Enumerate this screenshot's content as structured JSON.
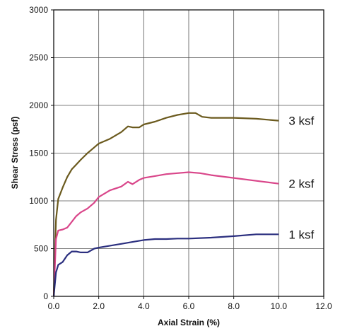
{
  "chart_data": {
    "type": "line",
    "title": "",
    "xlabel": "Axial Strain (%)",
    "ylabel": "Shear Stress (psf)",
    "xlim": [
      0,
      12
    ],
    "ylim": [
      0,
      3000
    ],
    "x_ticks": [
      "0.0",
      "2.0",
      "4.0",
      "6.0",
      "8.0",
      "10.0",
      "12.0"
    ],
    "y_ticks": [
      "0",
      "500",
      "1000",
      "1500",
      "2000",
      "2500",
      "3000"
    ],
    "grid": true,
    "series": [
      {
        "name": "3 ksf",
        "color": "#6b5a1e",
        "x": [
          0,
          0.1,
          0.2,
          0.4,
          0.6,
          0.8,
          1.0,
          1.2,
          1.5,
          1.8,
          2.0,
          2.5,
          3.0,
          3.3,
          3.5,
          3.8,
          4.0,
          4.5,
          5.0,
          5.5,
          6.0,
          6.3,
          6.6,
          7.0,
          8.0,
          9.0,
          10.0
        ],
        "y": [
          0,
          800,
          1020,
          1140,
          1250,
          1330,
          1380,
          1430,
          1500,
          1560,
          1600,
          1650,
          1720,
          1780,
          1770,
          1770,
          1800,
          1830,
          1870,
          1900,
          1920,
          1920,
          1880,
          1870,
          1870,
          1860,
          1840
        ]
      },
      {
        "name": "2 ksf",
        "color": "#d9468a",
        "x": [
          0,
          0.1,
          0.2,
          0.4,
          0.6,
          0.8,
          1.0,
          1.2,
          1.5,
          1.8,
          2.0,
          2.5,
          3.0,
          3.3,
          3.5,
          3.8,
          4.0,
          4.5,
          5.0,
          5.5,
          6.0,
          6.5,
          7.0,
          8.0,
          9.0,
          10.0
        ],
        "y": [
          0,
          600,
          690,
          700,
          720,
          780,
          840,
          880,
          920,
          980,
          1040,
          1110,
          1150,
          1200,
          1175,
          1220,
          1240,
          1260,
          1280,
          1290,
          1300,
          1290,
          1270,
          1240,
          1210,
          1180
        ]
      },
      {
        "name": "1 ksf",
        "color": "#2b2f7f",
        "x": [
          0,
          0.1,
          0.2,
          0.4,
          0.6,
          0.8,
          1.0,
          1.2,
          1.5,
          1.8,
          2.0,
          2.5,
          3.0,
          3.5,
          4.0,
          4.5,
          5.0,
          5.5,
          6.0,
          7.0,
          8.0,
          9.0,
          10.0
        ],
        "y": [
          0,
          250,
          330,
          360,
          430,
          470,
          470,
          460,
          460,
          500,
          510,
          530,
          550,
          570,
          590,
          600,
          600,
          605,
          605,
          615,
          630,
          650,
          650
        ]
      }
    ],
    "annotations": [
      "3 ksf",
      "2 ksf",
      "1 ksf"
    ]
  }
}
